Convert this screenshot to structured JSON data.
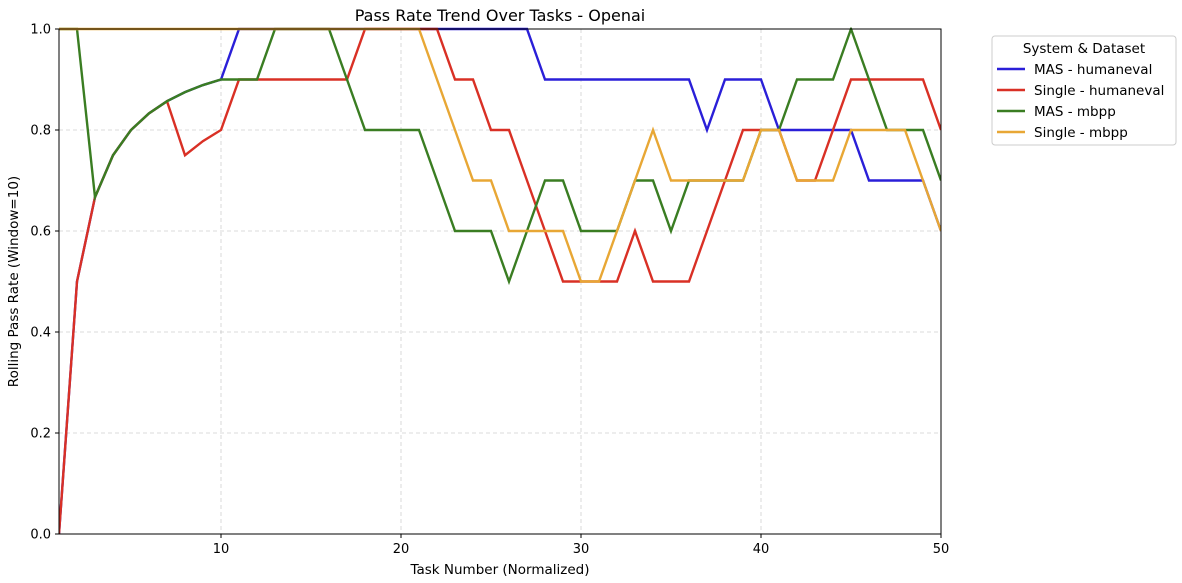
{
  "chart_data": {
    "type": "line",
    "title": "Pass Rate Trend Over Tasks - Openai",
    "xlabel": "Task Number (Normalized)",
    "ylabel": "Rolling Pass Rate (Window=10)",
    "xlim": [
      1,
      50
    ],
    "ylim": [
      0.0,
      1.0
    ],
    "xticks": [
      10,
      20,
      30,
      40,
      50
    ],
    "yticks": [
      "0.0",
      "0.2",
      "0.4",
      "0.6",
      "0.8",
      "1.0"
    ],
    "grid": true,
    "legend": {
      "title": "System & Dataset",
      "placement": "outside-top-right"
    },
    "x": [
      1,
      2,
      3,
      4,
      5,
      6,
      7,
      8,
      9,
      10,
      11,
      12,
      13,
      14,
      15,
      16,
      17,
      18,
      19,
      20,
      21,
      22,
      23,
      24,
      25,
      26,
      27,
      28,
      29,
      30,
      31,
      32,
      33,
      34,
      35,
      36,
      37,
      38,
      39,
      40,
      41,
      42,
      43,
      44,
      45,
      46,
      47,
      48,
      49,
      50
    ],
    "series": [
      {
        "name": "MAS - humaneval",
        "color": "#2a1fd8",
        "values": [
          0.0,
          0.5,
          0.667,
          0.75,
          0.8,
          0.833,
          0.857,
          0.875,
          0.889,
          0.9,
          1.0,
          1.0,
          1.0,
          1.0,
          1.0,
          1.0,
          1.0,
          1.0,
          1.0,
          1.0,
          1.0,
          1.0,
          1.0,
          1.0,
          1.0,
          1.0,
          1.0,
          0.9,
          0.9,
          0.9,
          0.9,
          0.9,
          0.9,
          0.9,
          0.9,
          0.9,
          0.8,
          0.9,
          0.9,
          0.9,
          0.8,
          0.8,
          0.8,
          0.8,
          0.8,
          0.7,
          0.7,
          0.7,
          0.7,
          0.6
        ]
      },
      {
        "name": "Single - humaneval",
        "color": "#d93025",
        "values": [
          0.0,
          0.5,
          0.667,
          0.75,
          0.8,
          0.833,
          0.857,
          0.75,
          0.778,
          0.8,
          0.9,
          0.9,
          0.9,
          0.9,
          0.9,
          0.9,
          0.9,
          1.0,
          1.0,
          1.0,
          1.0,
          1.0,
          0.9,
          0.9,
          0.8,
          0.8,
          0.7,
          0.6,
          0.5,
          0.5,
          0.5,
          0.5,
          0.6,
          0.5,
          0.5,
          0.5,
          0.6,
          0.7,
          0.8,
          0.8,
          0.8,
          0.7,
          0.7,
          0.8,
          0.9,
          0.9,
          0.9,
          0.9,
          0.9,
          0.8
        ]
      },
      {
        "name": "MAS - mbpp",
        "color": "#3a7d22",
        "values": [
          1.0,
          1.0,
          0.667,
          0.75,
          0.8,
          0.833,
          0.857,
          0.875,
          0.889,
          0.9,
          0.9,
          0.9,
          1.0,
          1.0,
          1.0,
          1.0,
          0.9,
          0.8,
          0.8,
          0.8,
          0.8,
          0.7,
          0.6,
          0.6,
          0.6,
          0.5,
          0.6,
          0.7,
          0.7,
          0.6,
          0.6,
          0.6,
          0.7,
          0.7,
          0.6,
          0.7,
          0.7,
          0.7,
          0.7,
          0.8,
          0.8,
          0.9,
          0.9,
          0.9,
          1.0,
          0.9,
          0.8,
          0.8,
          0.8,
          0.7
        ]
      },
      {
        "name": "Single - mbpp",
        "color": "#e8a735",
        "values": [
          1.0,
          1.0,
          1.0,
          1.0,
          1.0,
          1.0,
          1.0,
          1.0,
          1.0,
          1.0,
          1.0,
          1.0,
          1.0,
          1.0,
          1.0,
          1.0,
          1.0,
          1.0,
          1.0,
          1.0,
          1.0,
          0.9,
          0.8,
          0.7,
          0.7,
          0.6,
          0.6,
          0.6,
          0.6,
          0.5,
          0.5,
          0.6,
          0.7,
          0.8,
          0.7,
          0.7,
          0.7,
          0.7,
          0.7,
          0.8,
          0.8,
          0.7,
          0.7,
          0.7,
          0.8,
          0.8,
          0.8,
          0.8,
          0.7,
          0.6
        ]
      }
    ]
  }
}
